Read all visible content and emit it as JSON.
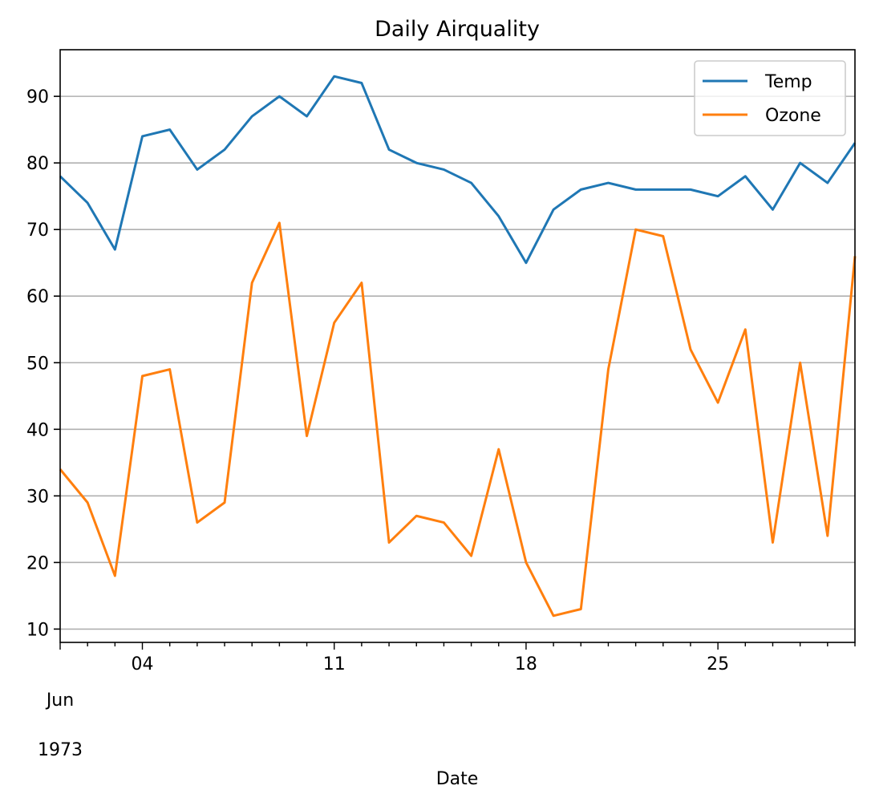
{
  "chart_data": {
    "type": "line",
    "title": "Daily Airquality",
    "xlabel": "Date",
    "ylabel": "",
    "x_month_label": "Jun",
    "x_year_label": "1973",
    "x_tick_labels": [
      "04",
      "11",
      "18",
      "25"
    ],
    "x_tick_days": [
      4,
      11,
      18,
      25
    ],
    "x": [
      1,
      2,
      3,
      4,
      5,
      6,
      7,
      8,
      9,
      10,
      11,
      12,
      13,
      14,
      15,
      16,
      17,
      18,
      19,
      20,
      21,
      22,
      23,
      24,
      25,
      26,
      27,
      28,
      29,
      30
    ],
    "xlim": [
      1,
      30
    ],
    "ylim": [
      8,
      97
    ],
    "y_ticks": [
      10,
      20,
      30,
      40,
      50,
      60,
      70,
      80,
      90
    ],
    "grid": "horizontal",
    "legend_position": "top-right",
    "series": [
      {
        "name": "Temp",
        "color": "#1f77b4",
        "values": [
          78,
          74,
          67,
          84,
          85,
          79,
          82,
          87,
          90,
          87,
          93,
          92,
          82,
          80,
          79,
          77,
          72,
          65,
          73,
          76,
          77,
          76,
          76,
          76,
          75,
          78,
          73,
          80,
          77,
          83
        ]
      },
      {
        "name": "Ozone",
        "color": "#ff7f0e",
        "values": [
          34,
          29,
          18,
          48,
          49,
          26,
          29,
          62,
          71,
          39,
          56,
          62,
          23,
          27,
          26,
          21,
          37,
          20,
          12,
          13,
          49,
          70,
          69,
          52,
          44,
          55,
          23,
          50,
          24,
          66
        ]
      }
    ]
  }
}
